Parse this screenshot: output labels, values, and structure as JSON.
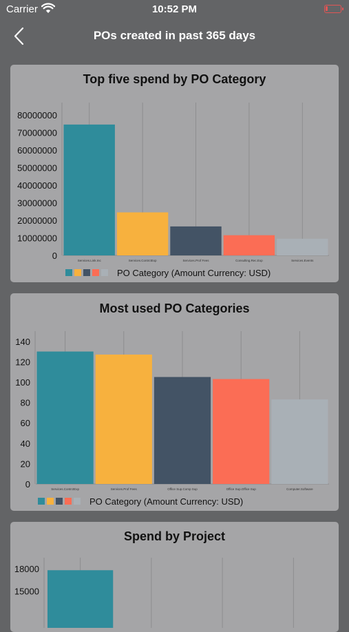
{
  "status_bar": {
    "carrier": "Carrier",
    "time": "10:52 PM",
    "battery_color": "#e25555"
  },
  "nav": {
    "back_icon": "chevron-left-icon",
    "title": "POs created in past 365 days"
  },
  "colors": {
    "teal": "#2f8c9b",
    "yellow": "#f7b13e",
    "navy": "#435365",
    "coral": "#fb6d55",
    "gray": "#a9b0b6"
  },
  "chart_data": [
    {
      "type": "bar",
      "title": "Top five spend by PO Category",
      "categories": [
        "Services.Link.Inc",
        "Services.ContrctExp",
        "Services.Prof Fees",
        "Consulting.Rec.Exp",
        "Services.Events"
      ],
      "values": [
        74500000,
        24500000,
        16500000,
        11500000,
        9500000
      ],
      "colors": [
        "#2f8c9b",
        "#f7b13e",
        "#435365",
        "#fb6d55",
        "#a9b0b6"
      ],
      "yticks": [
        0,
        10000000,
        20000000,
        30000000,
        40000000,
        50000000,
        60000000,
        70000000,
        80000000
      ],
      "ytick_labels": [
        "0",
        "10000000",
        "20000000",
        "30000000",
        "40000000",
        "50000000",
        "60000000",
        "70000000",
        "80000000"
      ],
      "ylim": [
        0,
        87000000
      ],
      "legend_label": "PO Category (Amount Currency: USD)",
      "legend_position": "bottom",
      "grid": "vertical"
    },
    {
      "type": "bar",
      "title": "Most used PO Categories",
      "categories": [
        "Services.ContrctExp",
        "Services.Prof Fees",
        "Office Sup.Comp Sup",
        "Office Sup.Office Sup",
        "Computer.Software"
      ],
      "values": [
        130,
        127,
        105,
        103,
        83
      ],
      "colors": [
        "#2f8c9b",
        "#f7b13e",
        "#435365",
        "#fb6d55",
        "#a9b0b6"
      ],
      "yticks": [
        0,
        20,
        40,
        60,
        80,
        100,
        120,
        140
      ],
      "ytick_labels": [
        "0",
        "20",
        "40",
        "60",
        "80",
        "100",
        "120",
        "140"
      ],
      "ylim": [
        0,
        150
      ],
      "legend_label": "PO Category (Amount Currency: USD)",
      "legend_position": "bottom",
      "grid": "vertical"
    },
    {
      "type": "bar",
      "title": "Spend by Project",
      "categories": [
        "",
        "",
        "",
        ""
      ],
      "values": [
        17800,
        null,
        null,
        null
      ],
      "colors": [
        "#2f8c9b",
        "#f7b13e",
        "#435365",
        "#fb6d55"
      ],
      "yticks": [
        15000,
        18000
      ],
      "ytick_labels": [
        "15000",
        "18000"
      ],
      "ylim": [
        10000,
        19500
      ],
      "grid": "vertical"
    }
  ]
}
